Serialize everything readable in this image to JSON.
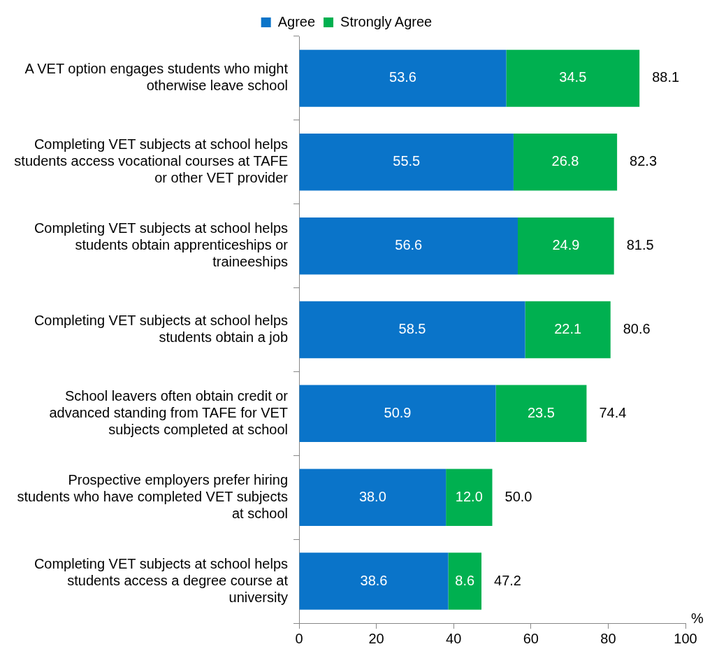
{
  "chart_data": {
    "type": "bar",
    "orientation": "horizontal",
    "stacked": true,
    "legend": "top",
    "grid": false,
    "xlabel": "%",
    "categories": [
      "A VET option engages students who might otherwise leave school",
      "Completing VET subjects at school helps students access vocational courses at TAFE or other VET provider",
      "Completing VET subjects at school helps students obtain apprenticeships or traineeships",
      "Completing VET subjects at school helps students obtain a job",
      "School leavers often obtain credit or advanced standing from TAFE for VET subjects completed at school",
      "Prospective employers prefer hiring students who have completed VET subjects at school",
      "Completing VET subjects at school helps students access a degree course at university"
    ],
    "series": [
      {
        "name": "Agree",
        "color": "#0a74c9",
        "values": [
          53.6,
          55.5,
          56.6,
          58.5,
          50.9,
          38.0,
          38.6
        ],
        "value_labels": [
          "53.6",
          "55.5",
          "56.6",
          "58.5",
          "50.9",
          "38.0",
          "38.6"
        ]
      },
      {
        "name": "Strongly Agree",
        "color": "#00b050",
        "values": [
          34.5,
          26.8,
          24.9,
          22.1,
          23.5,
          12.0,
          8.6
        ],
        "value_labels": [
          "34.5",
          "26.8",
          "24.9",
          "22.1",
          "23.5",
          "12.0",
          "8.6"
        ]
      }
    ],
    "totals": [
      "88.1",
      "82.3",
      "81.5",
      "80.6",
      "74.4",
      "50.0",
      "47.2"
    ],
    "xlim": [
      0,
      100
    ],
    "xticks": [
      0,
      20,
      40,
      60,
      80,
      100
    ]
  }
}
